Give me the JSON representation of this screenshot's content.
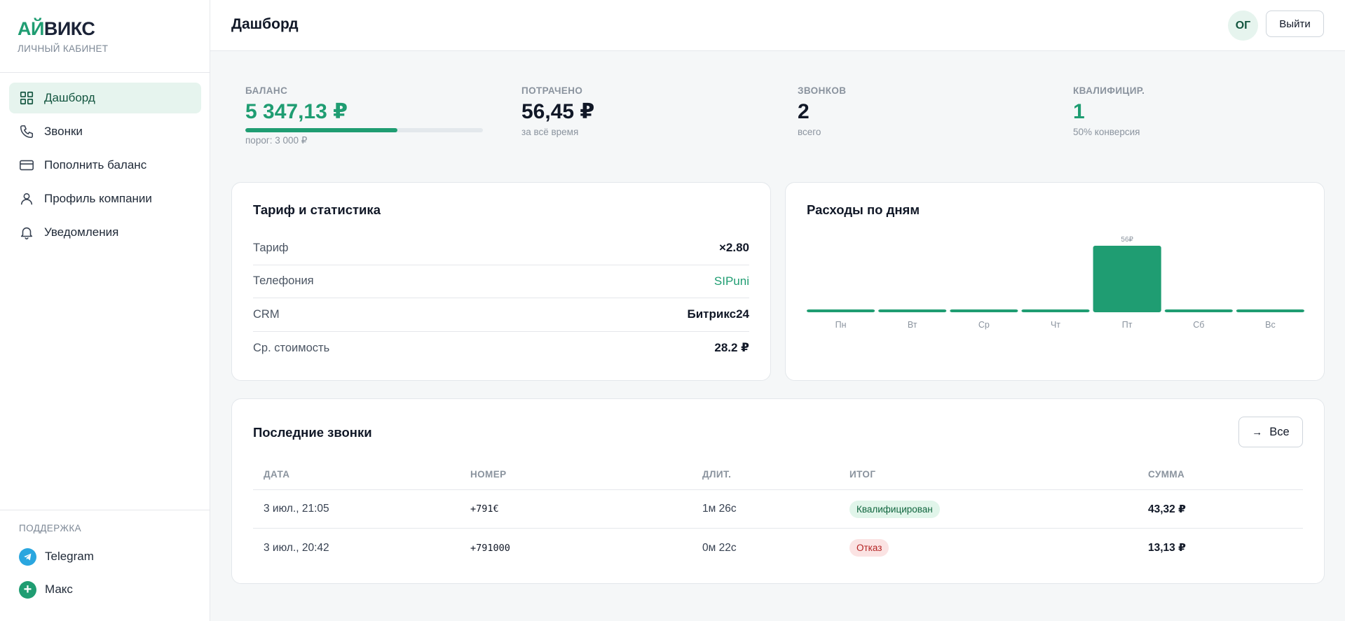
{
  "brand": {
    "logo_part1": "АЙ",
    "logo_part2": "ВИКС",
    "subtitle": "ЛИЧНЫЙ КАБИНЕТ"
  },
  "sidebar": {
    "items": [
      {
        "label": "Дашборд",
        "icon": "dashboard-icon",
        "active": true
      },
      {
        "label": "Звонки",
        "icon": "phone-icon"
      },
      {
        "label": "Пополнить баланс",
        "icon": "credit-card-icon"
      },
      {
        "label": "Профиль компании",
        "icon": "user-icon"
      },
      {
        "label": "Уведомления",
        "icon": "bell-icon"
      }
    ],
    "support_title": "ПОДДЕРЖКА",
    "support": [
      {
        "label": "Telegram",
        "icon": "telegram-icon"
      },
      {
        "label": "Макс",
        "icon": "plus-icon"
      }
    ]
  },
  "header": {
    "title": "Дашборд",
    "avatar": "ОГ",
    "logout": "Выйти"
  },
  "stats": {
    "balance": {
      "label": "БАЛАНС",
      "value": "5 347,13 ₽",
      "threshold": "порог: 3 000 ₽",
      "progress": 0.64
    },
    "spent": {
      "label": "ПОТРАЧЕНО",
      "value": "56,45 ₽",
      "sub": "за всё время"
    },
    "calls": {
      "label": "ЗВОНКОВ",
      "value": "2",
      "sub": "всего"
    },
    "qualified": {
      "label": "КВАЛИФИЦИР.",
      "value": "1",
      "sub": "50% конверсия"
    }
  },
  "tariff": {
    "title": "Тариф и статистика",
    "rows": [
      {
        "key": "Тариф",
        "value": "×2.80"
      },
      {
        "key": "Телефония",
        "value": "SIPuni"
      },
      {
        "key": "CRM",
        "value": "Битрикс24"
      },
      {
        "key": "Ср. стоимость",
        "value": "28.2 ₽"
      }
    ]
  },
  "chart_card": {
    "title": "Расходы по дням"
  },
  "chart_data": {
    "type": "bar",
    "title": "Расходы по дням",
    "categories": [
      "Пн",
      "Вт",
      "Ср",
      "Чт",
      "Пт",
      "Сб",
      "Вс"
    ],
    "values": [
      0,
      0,
      0,
      0,
      56,
      0,
      0
    ],
    "data_labels": [
      "",
      "",
      "",
      "",
      "56₽",
      "",
      ""
    ],
    "color": "#1f9d72",
    "ylim": [
      0,
      56
    ]
  },
  "calls": {
    "title": "Последние звонки",
    "all_button": "Все",
    "headers": [
      "ДАТА",
      "НОМЕР",
      "ДЛИТ.",
      "ИТОГ",
      "СУММА"
    ],
    "rows": [
      {
        "date": "3 июл., 21:05",
        "number": "+791€",
        "duration": "1м 26с",
        "result": "Квалифицирован",
        "result_type": "ok",
        "sum": "43,32 ₽"
      },
      {
        "date": "3 июл., 20:42",
        "number": "+791000",
        "duration": "0м 22с",
        "result": "Отказ",
        "result_type": "no",
        "sum": "13,13 ₽"
      }
    ]
  },
  "colors": {
    "accent": "#1f9d72",
    "brand_dark": "#1b2337",
    "danger": "#b42323"
  }
}
